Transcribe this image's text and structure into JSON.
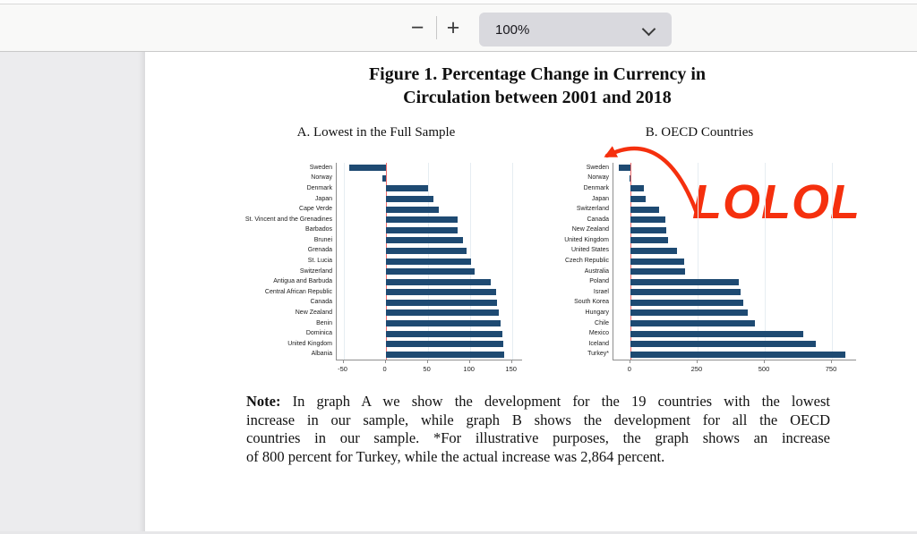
{
  "toolbar": {
    "zoom_out_glyph": "−",
    "zoom_in_glyph": "+",
    "zoom_level": "100%"
  },
  "document": {
    "figure_title_line1": "Figure 1. Percentage Change in Currency in",
    "figure_title_line2": "Circulation between 2001 and 2018",
    "note_label": "Note:",
    "note_lines": [
      "In graph A we show the development for the 19 countries with the lowest",
      "increase in our sample, while graph B shows the development for all the OECD",
      "countries in our sample. *For illustrative purposes, the graph shows an increase",
      "of 800 percent for Turkey, while the actual increase was 2,864 percent."
    ]
  },
  "annotation": {
    "text": "LOLOL",
    "color": "#f5300e"
  },
  "colors": {
    "bar": "#1e4a72",
    "zero_line": "#ee6b6b",
    "gridline": "#e6edf2",
    "axis": "#8f8f8f"
  },
  "chart_data": [
    {
      "type": "bar",
      "orientation": "horizontal",
      "title": "A. Lowest in the Full Sample",
      "categories": [
        "Sweden",
        "Norway",
        "Denmark",
        "Japan",
        "Cape Verde",
        "St. Vincent and the Grenadines",
        "Barbados",
        "Brunei",
        "Grenada",
        "St. Lucia",
        "Switzerland",
        "Antigua and Barbuda",
        "Central African Republic",
        "Canada",
        "New Zealand",
        "Benin",
        "Dominica",
        "United Kingdom",
        "Albania"
      ],
      "values": [
        -43,
        -4,
        50,
        57,
        63,
        85,
        86,
        92,
        96,
        101,
        106,
        125,
        131,
        132,
        134,
        137,
        139,
        140,
        141
      ],
      "xticks": [
        -50,
        0,
        50,
        100,
        150
      ],
      "xlim": [
        -58,
        162
      ],
      "grid": true,
      "legend": false
    },
    {
      "type": "bar",
      "orientation": "horizontal",
      "title": "B. OECD Countries",
      "categories": [
        "Sweden",
        "Norway",
        "Denmark",
        "Japan",
        "Switzerland",
        "Canada",
        "New Zealand",
        "United Kingdom",
        "United States",
        "Czech Republic",
        "Australia",
        "Poland",
        "Israel",
        "South Korea",
        "Hungary",
        "Chile",
        "Mexico",
        "Iceland",
        "Turkey*"
      ],
      "values": [
        -43,
        -4,
        50,
        57,
        106,
        132,
        134,
        140,
        175,
        200,
        205,
        405,
        410,
        420,
        437,
        462,
        645,
        690,
        800
      ],
      "xticks": [
        0,
        250,
        500,
        750
      ],
      "xlim": [
        -63,
        840
      ],
      "grid": true,
      "legend": false
    }
  ]
}
